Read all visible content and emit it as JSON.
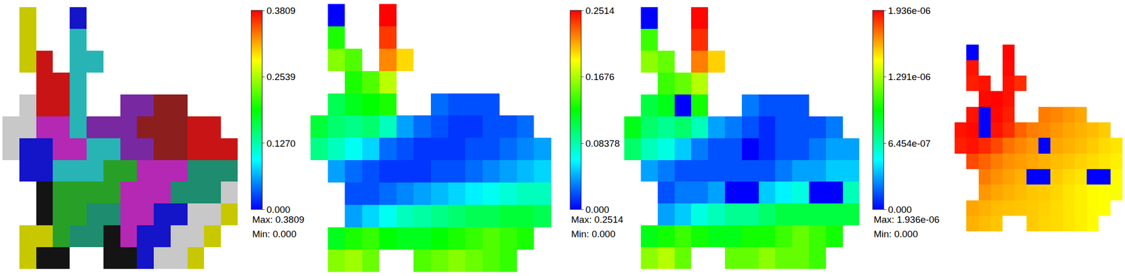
{
  "chart_data": [
    {
      "type": "heatmap",
      "tick_labels": false,
      "colors": [
        "#c8c800",
        "#c81414",
        "#1414c8",
        "#28b4b4",
        "#c8c8c8",
        "#b428b4",
        "#28a028",
        "#141414",
        "#7828a0",
        "#8c1e1e",
        "#1e8c6e"
      ],
      "cells": [
        [
          null,
          0,
          null,
          null,
          2,
          null,
          null,
          null,
          null,
          null,
          null,
          null,
          null,
          null
        ],
        [
          null,
          0,
          null,
          null,
          3,
          null,
          null,
          null,
          null,
          null,
          null,
          null,
          null,
          null
        ],
        [
          null,
          0,
          1,
          null,
          3,
          3,
          null,
          null,
          null,
          null,
          null,
          null,
          null,
          null
        ],
        [
          null,
          null,
          1,
          1,
          3,
          null,
          null,
          null,
          null,
          null,
          null,
          null,
          null,
          null
        ],
        [
          null,
          4,
          1,
          1,
          3,
          null,
          null,
          8,
          8,
          9,
          9,
          null,
          null,
          null
        ],
        [
          4,
          4,
          5,
          5,
          3,
          8,
          8,
          8,
          9,
          9,
          9,
          1,
          1,
          null
        ],
        [
          4,
          2,
          2,
          5,
          5,
          3,
          3,
          8,
          8,
          9,
          9,
          1,
          1,
          1
        ],
        [
          null,
          2,
          2,
          3,
          3,
          3,
          6,
          6,
          5,
          5,
          5,
          10,
          10,
          10
        ],
        [
          null,
          null,
          7,
          6,
          6,
          6,
          6,
          5,
          5,
          5,
          10,
          10,
          10,
          4
        ],
        [
          null,
          null,
          7,
          6,
          6,
          10,
          10,
          5,
          5,
          2,
          2,
          4,
          4,
          0
        ],
        [
          null,
          0,
          0,
          6,
          10,
          10,
          7,
          5,
          2,
          2,
          4,
          4,
          0,
          null
        ],
        [
          null,
          0,
          7,
          7,
          null,
          null,
          7,
          7,
          2,
          4,
          4,
          0,
          null,
          null
        ]
      ]
    },
    {
      "type": "heatmap",
      "tick_labels": false,
      "colors": [
        "#0000ff",
        "#00ffff",
        "#00ff00",
        "#ffff00",
        "#ff0000"
      ],
      "zlim": [
        0,
        0.3809
      ],
      "zticks": [
        {
          "value": 0,
          "label": "0.000"
        },
        {
          "value": 0.127,
          "label": "0.1270"
        },
        0.2539,
        0.3809
      ],
      "annotations": [
        "Max: 0.3809",
        "Min: 0.000"
      ],
      "cells": [
        [
          null,
          0.0,
          null,
          null,
          0.38,
          null,
          null,
          null,
          null,
          null,
          null,
          null,
          null,
          null
        ],
        [
          null,
          0.2,
          null,
          null,
          0.36,
          null,
          null,
          null,
          null,
          null,
          null,
          null,
          null,
          null
        ],
        [
          null,
          0.24,
          0.22,
          null,
          0.33,
          0.3,
          null,
          null,
          null,
          null,
          null,
          null,
          null,
          null
        ],
        [
          null,
          null,
          0.2,
          0.22,
          0.26,
          null,
          null,
          null,
          null,
          null,
          null,
          null,
          null,
          null
        ],
        [
          null,
          0.16,
          0.18,
          0.19,
          0.2,
          null,
          null,
          0.04,
          0.03,
          0.03,
          0.03,
          null,
          null,
          null
        ],
        [
          0.17,
          0.15,
          0.14,
          0.15,
          0.12,
          0.06,
          0.04,
          0.03,
          0.02,
          0.02,
          0.03,
          0.03,
          0.04,
          null
        ],
        [
          0.14,
          0.12,
          0.1,
          0.08,
          0.04,
          0.03,
          0.02,
          0.02,
          0.02,
          0.03,
          0.03,
          0.04,
          0.05,
          0.06
        ],
        [
          null,
          0.06,
          0.04,
          0.03,
          0.02,
          0.02,
          0.02,
          0.03,
          0.03,
          0.04,
          0.05,
          0.06,
          0.07,
          0.08
        ],
        [
          null,
          null,
          0.03,
          0.03,
          0.04,
          0.05,
          0.06,
          0.07,
          0.08,
          0.09,
          0.1,
          0.11,
          0.12,
          0.12
        ],
        [
          null,
          null,
          0.06,
          0.08,
          0.1,
          0.12,
          0.13,
          0.14,
          0.15,
          0.16,
          0.16,
          0.17,
          0.17,
          0.16
        ],
        [
          null,
          0.18,
          0.2,
          0.21,
          0.19,
          0.18,
          0.18,
          0.19,
          0.2,
          0.21,
          0.22,
          0.21,
          0.2,
          null
        ],
        [
          null,
          0.24,
          0.25,
          0.23,
          null,
          null,
          0.22,
          0.23,
          0.24,
          0.23,
          0.22,
          0.21,
          null,
          null
        ]
      ]
    },
    {
      "type": "heatmap",
      "tick_labels": false,
      "colors": [
        "#0000ff",
        "#00ffff",
        "#00ff00",
        "#ffff00",
        "#ff0000"
      ],
      "zlim": [
        0,
        0.2514
      ],
      "zticks": [
        {
          "value": 0,
          "label": "0.000"
        },
        0.08378,
        0.1676,
        0.2514
      ],
      "annotations": [
        "Max: 0.2514",
        "Min: 0.000"
      ],
      "cells": [
        [
          null,
          0.0,
          null,
          null,
          0.25,
          null,
          null,
          null,
          null,
          null,
          null,
          null,
          null,
          null
        ],
        [
          null,
          0.14,
          null,
          null,
          0.24,
          null,
          null,
          null,
          null,
          null,
          null,
          null,
          null,
          null
        ],
        [
          null,
          0.16,
          0.15,
          null,
          0.22,
          0.2,
          null,
          null,
          null,
          null,
          null,
          null,
          null,
          null
        ],
        [
          null,
          null,
          0.14,
          0.15,
          0.17,
          null,
          null,
          null,
          null,
          null,
          null,
          null,
          null,
          null
        ],
        [
          null,
          0.11,
          0.12,
          0.0,
          0.13,
          null,
          null,
          0.03,
          0.02,
          0.02,
          0.02,
          null,
          null,
          null
        ],
        [
          0.12,
          0.1,
          0.09,
          0.1,
          0.08,
          0.04,
          0.03,
          0.02,
          0.01,
          0.02,
          0.02,
          0.02,
          0.03,
          null
        ],
        [
          0.1,
          0.08,
          0.07,
          0.05,
          0.03,
          0.02,
          0.02,
          0.0,
          0.01,
          0.02,
          0.02,
          0.03,
          0.04,
          0.04
        ],
        [
          null,
          0.04,
          0.03,
          0.02,
          0.02,
          0.02,
          0.02,
          0.02,
          0.02,
          0.03,
          0.04,
          0.04,
          0.05,
          0.05
        ],
        [
          null,
          null,
          0.02,
          0.03,
          0.03,
          0.04,
          0.0,
          0.0,
          0.05,
          0.06,
          0.07,
          0.0,
          0.0,
          0.08
        ],
        [
          null,
          null,
          0.04,
          0.05,
          0.07,
          0.08,
          0.09,
          0.09,
          0.1,
          0.11,
          0.11,
          0.11,
          0.11,
          0.11
        ],
        [
          null,
          0.12,
          0.13,
          0.14,
          0.13,
          0.12,
          0.12,
          0.13,
          0.13,
          0.14,
          0.15,
          0.14,
          0.13,
          null
        ],
        [
          null,
          0.16,
          0.17,
          0.15,
          null,
          null,
          0.15,
          0.15,
          0.16,
          0.15,
          0.15,
          0.14,
          null,
          null
        ]
      ]
    },
    {
      "type": "heatmap",
      "tick_labels": false,
      "colors": [
        "#0000ff",
        "#00ffff",
        "#00ff00",
        "#ffff00",
        "#ff0000"
      ],
      "zlim": [
        0,
        1.936e-06
      ],
      "zticks": [
        {
          "value": 0,
          "label": "0.000"
        },
        {
          "value": 6.454e-07,
          "label": "6.454e-07"
        },
        {
          "value": 1.291e-06,
          "label": "1.291e-06"
        },
        {
          "value": 1.936e-06,
          "label": "1.936e-06"
        }
      ],
      "annotations": [
        "Max: 1.936e-06",
        "Min: 0.000"
      ],
      "cells": [
        [
          null,
          0,
          null,
          null,
          1.93e-06,
          null,
          null,
          null,
          null,
          null,
          null,
          null,
          null,
          null
        ],
        [
          null,
          1.9e-06,
          null,
          null,
          1.92e-06,
          null,
          null,
          null,
          null,
          null,
          null,
          null,
          null,
          null
        ],
        [
          null,
          1.88e-06,
          1.9e-06,
          null,
          1.9e-06,
          1.85e-06,
          null,
          null,
          null,
          null,
          null,
          null,
          null,
          null
        ],
        [
          null,
          null,
          1.92e-06,
          1.93e-06,
          1.9e-06,
          null,
          null,
          null,
          null,
          null,
          null,
          null,
          null,
          null
        ],
        [
          null,
          1.9e-06,
          0,
          1.92e-06,
          1.88e-06,
          null,
          null,
          1.7e-06,
          1.68e-06,
          1.65e-06,
          1.62e-06,
          null,
          null,
          null
        ],
        [
          1.9e-06,
          1.92e-06,
          0,
          1.9e-06,
          1.85e-06,
          1.75e-06,
          1.7e-06,
          1.68e-06,
          1.65e-06,
          1.62e-06,
          1.6e-06,
          1.58e-06,
          1.55e-06,
          null
        ],
        [
          1.88e-06,
          1.9e-06,
          1.86e-06,
          1.8e-06,
          1.72e-06,
          1.68e-06,
          1.65e-06,
          0,
          1.62e-06,
          1.6e-06,
          1.58e-06,
          1.55e-06,
          1.52e-06,
          1.5e-06
        ],
        [
          null,
          1.8e-06,
          1.75e-06,
          1.7e-06,
          1.66e-06,
          1.64e-06,
          1.62e-06,
          1.6e-06,
          1.58e-06,
          1.56e-06,
          1.54e-06,
          1.52e-06,
          1.5e-06,
          1.48e-06
        ],
        [
          null,
          null,
          1.7e-06,
          1.66e-06,
          1.63e-06,
          1.6e-06,
          0,
          0,
          1.55e-06,
          1.52e-06,
          1.5e-06,
          0,
          0,
          1.46e-06
        ],
        [
          null,
          null,
          1.65e-06,
          1.62e-06,
          1.6e-06,
          1.58e-06,
          1.56e-06,
          1.55e-06,
          1.53e-06,
          1.5e-06,
          1.48e-06,
          1.46e-06,
          1.45e-06,
          1.44e-06
        ],
        [
          null,
          1.62e-06,
          1.6e-06,
          1.58e-06,
          1.57e-06,
          1.56e-06,
          1.55e-06,
          1.54e-06,
          1.52e-06,
          1.5e-06,
          1.48e-06,
          1.46e-06,
          1.45e-06,
          null
        ],
        [
          null,
          1.6e-06,
          1.58e-06,
          1.56e-06,
          null,
          null,
          1.55e-06,
          1.53e-06,
          1.52e-06,
          1.5e-06,
          1.48e-06,
          1.46e-06,
          null,
          null
        ]
      ]
    }
  ]
}
